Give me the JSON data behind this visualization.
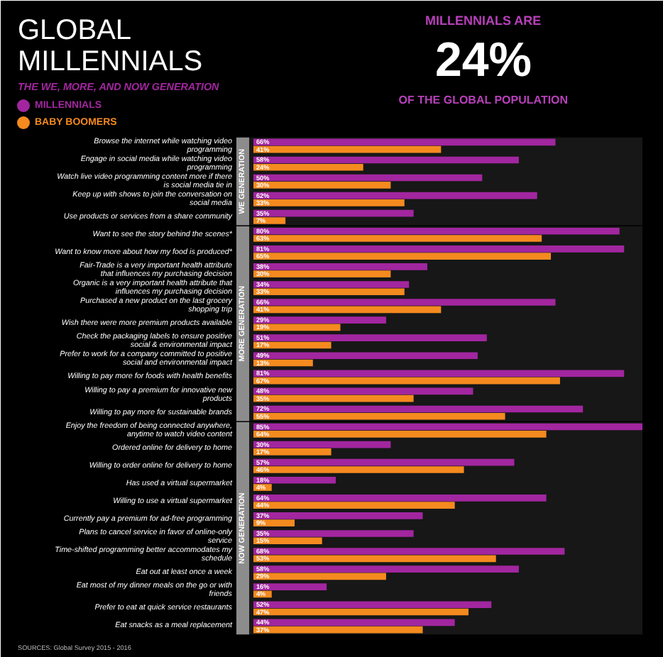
{
  "chart_data": {
    "type": "bar",
    "orientation": "horizontal",
    "title": "GLOBAL MILLENNIALS",
    "subtitle": "THE WE, MORE, AND NOW GENERATION",
    "categories": [
      "Browse the internet while watching video programming",
      "Engage in social media while watching video programming",
      "Watch live video programming content more if there is social media tie in",
      "Keep up with shows to join the conversation on social media",
      "Use products or services from a share community",
      "Want to see the story behind the scenes*",
      "Want to know more about how my food is produced*",
      "Fair-Trade is a very important health attribute that influences my purchasing decision",
      "Organic is a very important health attribute that influences my purchasing decision",
      "Purchased a new product on the last grocery shopping trip",
      "Wish there were more premium products available",
      "Check the packaging labels to ensure positive social & environmental impact",
      "Prefer to work for a company committed to positive social and environmental impact",
      "Willing to pay more for foods with health benefits",
      "Willing to pay a premium for innovative new products",
      "Willing to pay more for sustainable brands",
      "Enjoy the freedom of being connected anywhere, anytime to watch video content",
      "Ordered online for delivery to home",
      "Willing to order online for delivery to home",
      "Has used a virtual supermarket",
      "Willing to use a virtual supermarket",
      "Currently pay a premium for ad-free programming",
      "Plans to cancel service in favor of online-only service",
      "Time-shifted programming better accommodates my schedule",
      "Eat out at least once a week",
      "Eat most of my dinner meals on the go or with friends",
      "Prefer to eat at quick service restaurants",
      "Eat snacks as a meal replacement"
    ],
    "series": [
      {
        "name": "MILLENNIALS",
        "color": "#a2269f",
        "values": [
          66,
          58,
          50,
          62,
          35,
          80,
          81,
          38,
          34,
          66,
          29,
          51,
          49,
          81,
          48,
          72,
          85,
          30,
          57,
          18,
          64,
          37,
          35,
          68,
          58,
          16,
          52,
          44
        ],
        "value_labels": [
          "66%",
          "58%",
          "50%",
          "62%",
          "35%",
          "80%",
          "81%",
          "38%",
          "34%",
          "66%",
          "29%",
          "51%",
          "49%",
          "81%",
          "48%",
          "72%",
          "85%",
          "30%",
          "57%",
          "18%",
          "64%",
          "37%",
          "35%",
          "68%",
          "58%",
          "16%",
          "52%",
          "44%"
        ]
      },
      {
        "name": "BABY BOOMERS",
        "color": "#f58a1f",
        "values": [
          41,
          24,
          30,
          33,
          7,
          63,
          65,
          30,
          33,
          41,
          19,
          17,
          13,
          67,
          35,
          55,
          64,
          17,
          46,
          4,
          44,
          9,
          15,
          53,
          29,
          4,
          47,
          37
        ],
        "value_labels": [
          "41%",
          "24%",
          "30%",
          "33%",
          "7%",
          "63%",
          "65%",
          "30%",
          "33%",
          "41%",
          "19%",
          "17%",
          "13%",
          "67%",
          "35%",
          "55%",
          "64%",
          "17%",
          "46%",
          "4%",
          "44%",
          "9%",
          "15%",
          "53%",
          "29%",
          "4%",
          "47%",
          "37%"
        ]
      }
    ],
    "tick_labels": "y",
    "legend": "top left",
    "bands": [
      {
        "axis": "y",
        "from": "Browse the internet while watching video programming",
        "to": "Use products or services from a share community",
        "label": "WE GENERATION",
        "color": "#8c8c8c"
      },
      {
        "axis": "y",
        "from": "Want to see the story behind the scenes*",
        "to": "Willing to pay more for sustainable brands",
        "label": "MORE GENERATION",
        "color": "#8c8c8c"
      },
      {
        "axis": "y",
        "from": "Enjoy the freedom of being connected anywhere, anytime to watch video content",
        "to": "Eat snacks as a meal replacement",
        "label": "NOW GENERATION",
        "color": "#8c8c8c"
      }
    ],
    "annotations": [
      "MILLENNIALS ARE",
      "24%",
      "OF THE GLOBAL POPULATION",
      "SOURCES: Global Survey 2015 - 2016"
    ]
  }
}
